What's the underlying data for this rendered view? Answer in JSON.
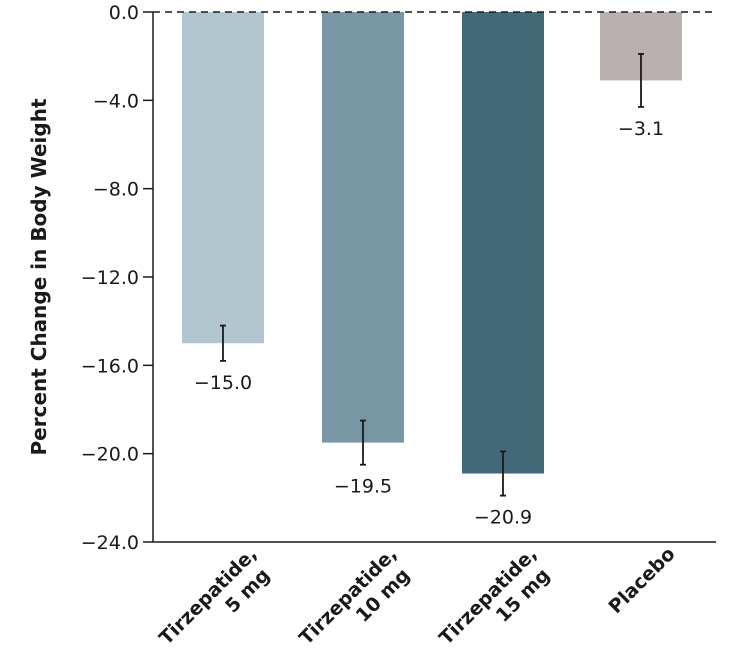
{
  "chart_data": {
    "type": "bar",
    "title": "",
    "xlabel": "",
    "ylabel": "Percent Change in Body Weight",
    "ylim": [
      -24.0,
      0.0
    ],
    "yticks": [
      0.0,
      -4.0,
      -8.0,
      -12.0,
      -16.0,
      -20.0,
      -24.0
    ],
    "ytick_labels": [
      "0.0",
      "−4.0",
      "−8.0",
      "−12.0",
      "−16.0",
      "−20.0",
      "−24.0"
    ],
    "grid": false,
    "legend": "none",
    "categories": [
      {
        "line1": "Tirzepatide,",
        "line2": "5 mg"
      },
      {
        "line1": "Tirzepatide,",
        "line2": "10 mg"
      },
      {
        "line1": "Tirzepatide,",
        "line2": "15 mg"
      },
      {
        "line1": "Placebo",
        "line2": ""
      }
    ],
    "values": [
      -15.0,
      -19.5,
      -20.9,
      -3.1
    ],
    "value_labels": [
      "−15.0",
      "−19.5",
      "−20.9",
      "−3.1"
    ],
    "error_bars": [
      {
        "low": -15.8,
        "high": -14.2
      },
      {
        "low": -20.5,
        "high": -18.5
      },
      {
        "low": -21.9,
        "high": -19.9
      },
      {
        "low": -4.3,
        "high": -1.9
      }
    ],
    "colors": [
      "#b2c6cf",
      "#7896a3",
      "#436877",
      "#b9b1b0"
    ],
    "reference_line": {
      "y": 0.0,
      "style": "dashed"
    }
  }
}
